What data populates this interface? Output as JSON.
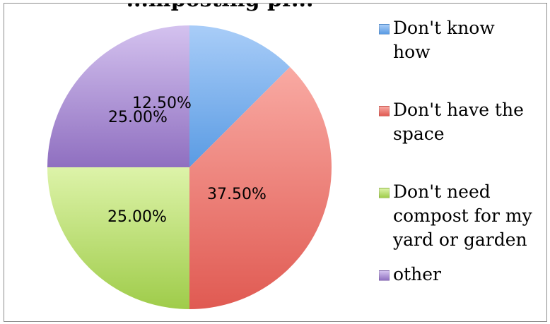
{
  "chart_data": {
    "type": "pie",
    "title": "...mposting pr...",
    "slices": [
      {
        "label": "Don't know how",
        "value": 12.5,
        "value_label": "12.50%",
        "color": "#5a9be3",
        "color_light": "#a9cdf8"
      },
      {
        "label": "Don't have the space",
        "value": 37.5,
        "value_label": "37.50%",
        "color": "#e05a52",
        "color_light": "#f9aaa3"
      },
      {
        "label": "Don't need compost for my yard or garden",
        "value": 25.0,
        "value_label": "25.00%",
        "color": "#9fcc4a",
        "color_light": "#ddf3a9"
      },
      {
        "label": "other",
        "value": 25.0,
        "value_label": "25.00%",
        "color": "#8f6fc0",
        "color_light": "#d4c2ef"
      }
    ],
    "start_angle": "12 o'clock",
    "direction": "clockwise",
    "legend_position": "right"
  }
}
